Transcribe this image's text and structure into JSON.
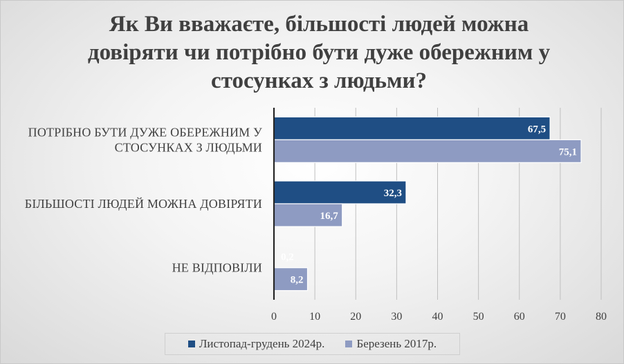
{
  "title_lines": [
    "Як Ви вважаєте, більшості людей можна",
    "довіряти чи потрібно бути дуже обережним у",
    "стосунках з людьми?"
  ],
  "colors": {
    "series_1": "#1f4e84",
    "series_2": "#8e9bc2",
    "axis": "#262626",
    "grid": "#bfbfbf"
  },
  "chart_data": {
    "type": "bar",
    "orientation": "horizontal",
    "title": "Як Ви вважаєте, більшості людей можна довіряти чи потрібно бути дуже обережним у стосунках з людьми?",
    "categories": [
      [
        "ПОТРІБНО БУТИ ДУЖЕ ОБЕРЕЖНИМ У",
        "СТОСУНКАХ З ЛЮДЬМИ"
      ],
      [
        "БІЛЬШОСТІ ЛЮДЕЙ МОЖНА ДОВІРЯТИ"
      ],
      [
        "НЕ ВІДПОВІЛИ"
      ]
    ],
    "series": [
      {
        "name": "Листопад-грудень 2024р.",
        "values": [
          67.5,
          32.3,
          0.2
        ],
        "labels": [
          "67,5",
          "32,3",
          "0,2"
        ]
      },
      {
        "name": "Березень 2017р.",
        "values": [
          75.1,
          16.7,
          8.2
        ],
        "labels": [
          "75,1",
          "16,7",
          "8,2"
        ]
      }
    ],
    "xlim": [
      0,
      80
    ],
    "xticks": [
      0,
      10,
      20,
      30,
      40,
      50,
      60,
      70,
      80
    ],
    "grid": true,
    "legend_position": "bottom",
    "data_labels": true
  }
}
